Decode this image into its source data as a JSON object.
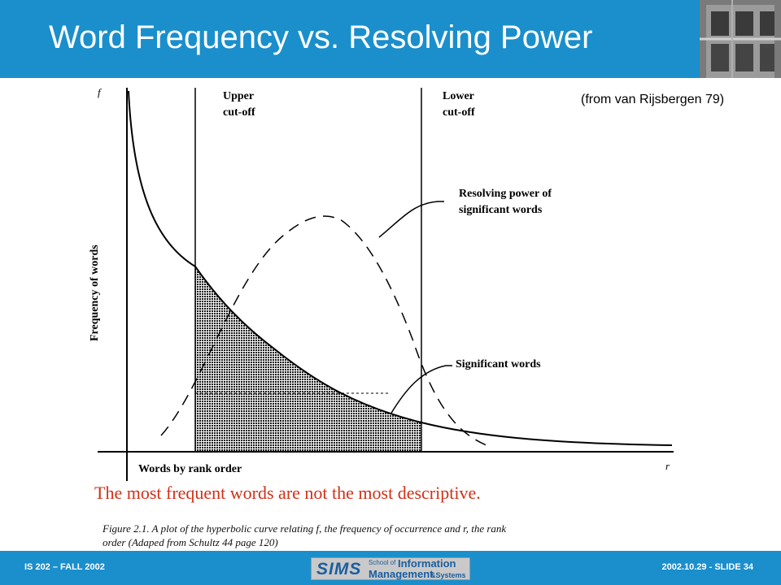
{
  "slide": {
    "title": "Word Frequency vs. Resolving Power",
    "attribution": "(from van Rijsbergen 79)",
    "takeaway": "The most frequent words are not the most descriptive.",
    "figure_caption": [
      "Figure 2.1.   A plot of the hyperbolic curve relating f, the frequency of occurrence and r, the rank",
      "order (Adaped from Schultz 44 page 120)"
    ]
  },
  "diagram": {
    "y_axis_symbol": "f",
    "x_axis_symbol": "r",
    "y_axis_label": "Frequency of words",
    "x_axis_label": "Words by rank order",
    "upper_cutoff": [
      "Upper",
      "cut-off"
    ],
    "lower_cutoff": [
      "Lower",
      "cut-off"
    ],
    "resolving_power_label": [
      "Resolving power of",
      "significant words"
    ],
    "significant_words_label": "Significant words"
  },
  "footer": {
    "left": "IS 202 – FALL 2002",
    "right": "2002.10.29 - SLIDE 34",
    "logo": {
      "sims": "SIMS",
      "school_of": "School of",
      "information": "Information",
      "management": "Management",
      "systems": "&Systems"
    }
  },
  "colors": {
    "header_bg": "#1a8fcc",
    "takeaway_text": "#d03018"
  }
}
